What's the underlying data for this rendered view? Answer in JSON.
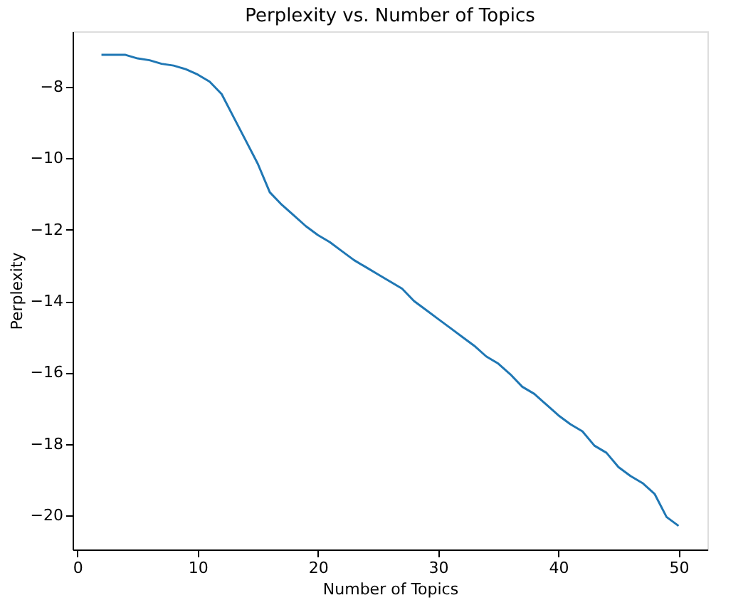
{
  "chart_data": {
    "type": "line",
    "title": "Perplexity vs. Number of Topics",
    "xlabel": "Number of Topics",
    "ylabel": "Perplexity",
    "x": [
      2,
      3,
      4,
      5,
      6,
      7,
      8,
      9,
      10,
      11,
      12,
      13,
      14,
      15,
      16,
      17,
      18,
      19,
      20,
      21,
      22,
      23,
      24,
      25,
      26,
      27,
      28,
      29,
      30,
      31,
      32,
      33,
      34,
      35,
      36,
      37,
      38,
      39,
      40,
      41,
      42,
      43,
      44,
      45,
      46,
      47,
      48,
      49,
      50
    ],
    "series": [
      {
        "color": "#1f77b4",
        "values": [
          -7.1,
          -7.1,
          -7.1,
          -7.2,
          -7.25,
          -7.35,
          -7.4,
          -7.5,
          -7.65,
          -7.85,
          -8.2,
          -8.85,
          -9.5,
          -10.15,
          -10.95,
          -11.3,
          -11.6,
          -11.9,
          -12.15,
          -12.35,
          -12.6,
          -12.85,
          -13.05,
          -13.25,
          -13.45,
          -13.65,
          -14.0,
          -14.25,
          -14.5,
          -14.75,
          -15.0,
          -15.25,
          -15.55,
          -15.75,
          -16.05,
          -16.4,
          -16.6,
          -16.9,
          -17.2,
          -17.45,
          -17.65,
          -18.05,
          -18.25,
          -18.65,
          -18.9,
          -19.1,
          -19.4,
          -20.05,
          -20.3
        ]
      }
    ],
    "xlim": [
      -0.4,
      52.4
    ],
    "ylim": [
      -20.96,
      -6.44
    ],
    "xticks": [
      0,
      10,
      20,
      30,
      40,
      50
    ],
    "yticks": [
      -20,
      -18,
      -16,
      -14,
      -12,
      -10,
      -8
    ],
    "grid": false,
    "marker": "none",
    "line_style": "solid"
  }
}
